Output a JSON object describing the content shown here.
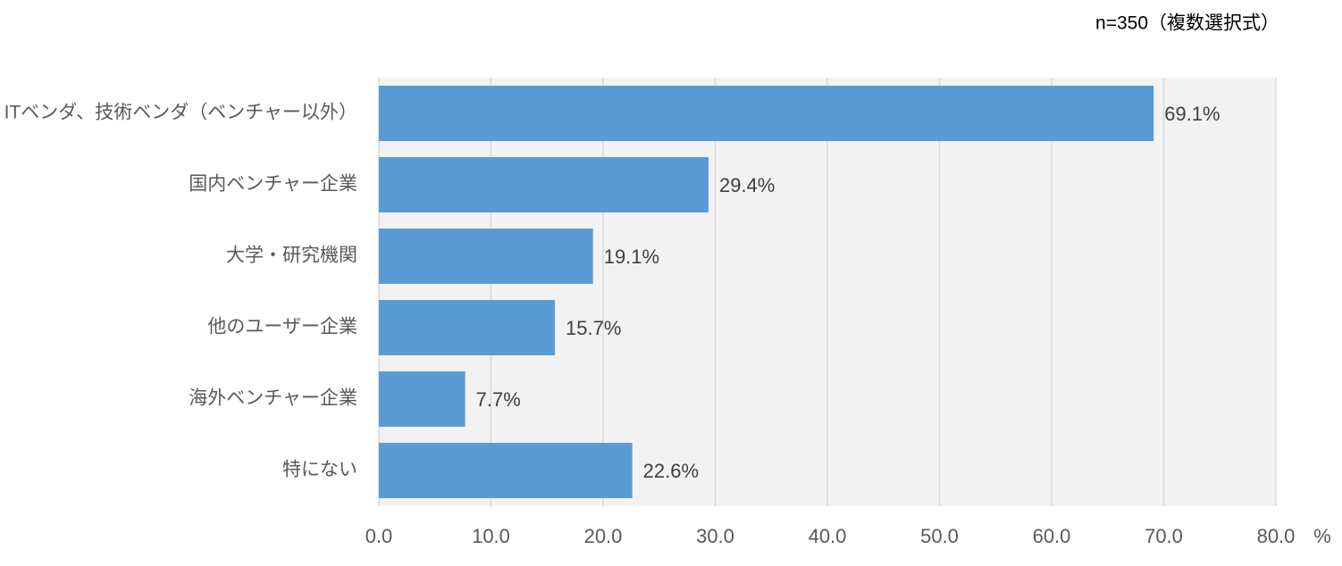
{
  "chart_data": {
    "type": "bar",
    "orientation": "horizontal",
    "annotation": "n=350（複数選択式）",
    "x_label": "%",
    "categories": [
      "ITベンダ、技術ベンダ（ベンチャー以外）",
      "国内ベンチャー企業",
      "大学・研究機関",
      "他のユーザー企業",
      "海外ベンチャー企業",
      "特にない"
    ],
    "values": [
      69.1,
      29.4,
      19.1,
      15.7,
      7.7,
      22.6
    ],
    "value_labels": [
      "69.1%",
      "29.4%",
      "19.1%",
      "15.7%",
      "7.7%",
      "22.6%"
    ],
    "color": "#5b9bd5",
    "xlim": [
      0,
      80
    ],
    "xticks": [
      {
        "value": 0,
        "label": "0.0"
      },
      {
        "value": 10,
        "label": "10.0"
      },
      {
        "value": 20,
        "label": "20.0"
      },
      {
        "value": 30,
        "label": "30.0"
      },
      {
        "value": 40,
        "label": "40.0"
      },
      {
        "value": 50,
        "label": "50.0"
      },
      {
        "value": 60,
        "label": "60.0"
      },
      {
        "value": 70,
        "label": "70.0"
      },
      {
        "value": 80,
        "label": "80.0"
      }
    ],
    "grid": true
  }
}
